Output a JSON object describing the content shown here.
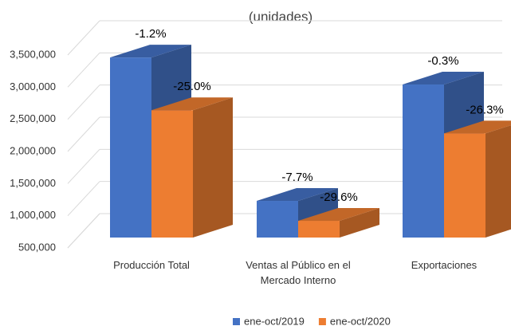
{
  "chart_data": {
    "type": "bar3d",
    "title": "(unidades)",
    "categories": [
      "Producción Total",
      "Ventas al Público en el Mercado Interno",
      "Exportaciones"
    ],
    "series": [
      {
        "name": "ene-oct/2019",
        "color": "#4472c4",
        "values": [
          3300000,
          1070000,
          2880000
        ],
        "labels": [
          "-1.2%",
          "-7.7%",
          "-0.3%"
        ]
      },
      {
        "name": "ene-oct/2020",
        "color": "#ed7d31",
        "values": [
          2480000,
          760000,
          2120000
        ],
        "labels": [
          "-25.0%",
          "-29.6%",
          "-26.3%"
        ]
      }
    ],
    "ylim": [
      500000,
      3500000
    ],
    "yticks": [
      {
        "value": 500000,
        "label": "500,000"
      },
      {
        "value": 1000000,
        "label": "1,000,000"
      },
      {
        "value": 1500000,
        "label": "1,500,000"
      },
      {
        "value": 2000000,
        "label": "2,000,000"
      },
      {
        "value": 2500000,
        "label": "2,500,000"
      },
      {
        "value": 3000000,
        "label": "3,000,000"
      },
      {
        "value": 3500000,
        "label": "3,500,000"
      }
    ],
    "grid": true
  }
}
